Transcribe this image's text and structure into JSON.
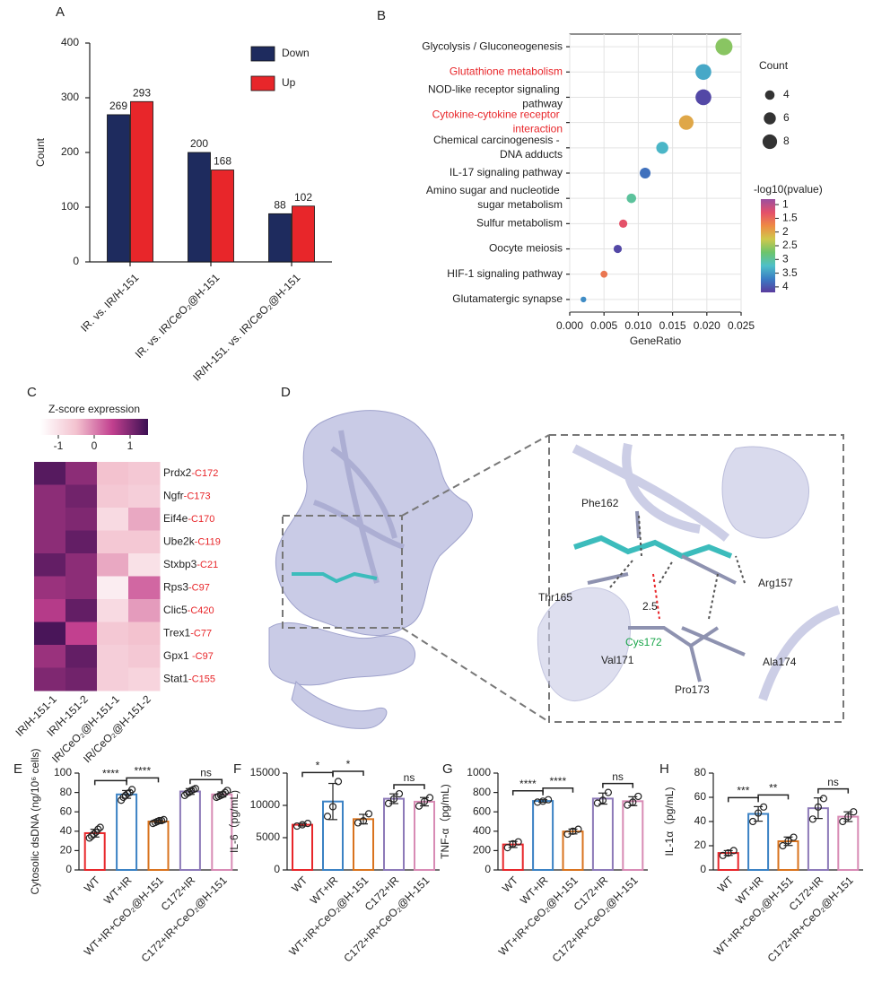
{
  "chart_data": [
    {
      "type": "grouped-bar",
      "panel": "A",
      "ylabel": "Count",
      "categories": [
        "IR. vs. IR/H-151",
        "IR. vs. IR/CeO₂@H-151",
        "IR/H-151. vs. IR/CeO₂@H-151"
      ],
      "series": [
        {
          "name": "Down",
          "color": "#1e2b5e",
          "values": [
            269,
            200,
            88
          ]
        },
        {
          "name": "Up",
          "color": "#e8262a",
          "values": [
            293,
            168,
            102
          ]
        }
      ],
      "ylim": [
        0,
        400
      ],
      "yticks": [
        0,
        100,
        200,
        300,
        400
      ]
    },
    {
      "type": "dot",
      "panel": "B",
      "xlabel": "GeneRatio",
      "categories": [
        "Glycolysis / Gluconeogenesis",
        "Glutathione metabolism",
        "NOD-like receptor signaling pathway",
        "Cytokine-cytokine receptor interaction",
        "Chemical carcinogenesis - DNA adducts",
        "IL-17 signaling pathway",
        "Amino sugar and nucleotide sugar metabolism",
        "Sulfur metabolism",
        "Oocyte meiosis",
        "HIF-1 signaling pathway",
        "Glutamatergic synapse"
      ],
      "label_colors": [
        "#222222",
        "#e8262a",
        "#222222",
        "#e8262a",
        "#222222",
        "#222222",
        "#222222",
        "#222222",
        "#222222",
        "#222222",
        "#222222"
      ],
      "gene_ratio": [
        0.0225,
        0.0195,
        0.0195,
        0.017,
        0.0135,
        0.011,
        0.009,
        0.0078,
        0.007,
        0.005,
        0.002
      ],
      "count": [
        10,
        9,
        9,
        8,
        6,
        5,
        4,
        3,
        3,
        2,
        1
      ],
      "neg_log10_p": [
        2.6,
        3.4,
        4.1,
        2.0,
        3.3,
        3.8,
        3.0,
        1.3,
        4.1,
        1.6,
        3.6
      ],
      "xlim": [
        0,
        0.025
      ],
      "xticks": [
        {
          "value": 0,
          "label": "0.000"
        },
        0.005,
        {
          "value": 0.01,
          "label": "0.010"
        },
        0.015,
        {
          "value": 0.02,
          "label": "0.020"
        },
        0.025
      ],
      "grid": true,
      "size_title": "Count",
      "size_ticks": [
        4,
        6,
        8
      ],
      "color_title": "-log10(pvalue)",
      "clim": [
        0.8,
        4.2
      ],
      "cticks": [
        1,
        1.5,
        2,
        2.5,
        3,
        3.5,
        4
      ],
      "colorscale": [
        "#9b4fa0",
        "#e4506a",
        "#ee8a44",
        "#cfc84c",
        "#6cc46b",
        "#4ec0c8",
        "#3a7cc4",
        "#5a3b9e"
      ]
    },
    {
      "type": "heatmap",
      "panel": "C",
      "color_title": "Z-score expression",
      "rows": [
        "Prdx2",
        "Ngfr",
        "Eif4e",
        "Ube2k",
        "Stxbp3",
        "Rps3",
        "Clic5",
        "Trex1",
        "Gpx1 ",
        "Stat1"
      ],
      "row_sites": [
        "-C172",
        "-C173",
        "-C170",
        "-C119",
        "-C21",
        "-C97",
        "-C420",
        "-C77",
        "-C97",
        "-C155"
      ],
      "columns": [
        "IR/H-151-1",
        "IR/H-151-2",
        "IR/CeO₂@H-151-1",
        "IR/CeO₂@H-151-2"
      ],
      "values": [
        [
          1.3,
          0.9,
          -0.5,
          -0.6
        ],
        [
          0.9,
          1.1,
          -0.6,
          -0.7
        ],
        [
          0.9,
          1.0,
          -0.9,
          -0.3
        ],
        [
          0.9,
          1.2,
          -0.6,
          -0.6
        ],
        [
          1.2,
          0.9,
          -0.3,
          -1.0
        ],
        [
          0.8,
          0.9,
          -1.2,
          0.2
        ],
        [
          0.6,
          1.2,
          -0.9,
          -0.2
        ],
        [
          1.4,
          0.5,
          -0.6,
          -0.5
        ],
        [
          0.8,
          1.2,
          -0.7,
          -0.6
        ],
        [
          1.0,
          1.1,
          -0.7,
          -0.8
        ]
      ],
      "zlim": [
        -1.5,
        1.5
      ],
      "zticks": [
        -1,
        0,
        1
      ],
      "colorscale": [
        "#ffffff",
        "#f3c2cf",
        "#c2408f",
        "#3b1053"
      ]
    },
    {
      "type": "bar-dots",
      "panel": "E",
      "ylabel": "Cytosolic dsDNA (ng/10⁶ cells)",
      "categories": [
        "WT",
        "WT+IR",
        "WT+IR+CeO₂@H-151",
        "C172+IR",
        "C172+IR+CeO₂@H-151"
      ],
      "colors": [
        "#e8262a",
        "#3b82c4",
        "#d9731e",
        "#8d7ab8",
        "#d88bb5"
      ],
      "values": [
        38,
        78,
        50,
        81,
        78
      ],
      "errors": [
        4,
        4,
        1.5,
        3,
        2.6
      ],
      "points": [
        [
          33,
          35,
          37,
          39,
          42,
          44
        ],
        [
          72,
          75,
          77,
          79,
          80,
          83
        ],
        [
          48,
          49,
          50,
          51,
          51,
          52
        ],
        [
          77,
          79,
          80,
          82,
          83,
          84
        ],
        [
          75,
          76,
          77,
          78,
          80,
          82
        ]
      ],
      "significance": [
        {
          "from": 0,
          "to": 1,
          "label": "****"
        },
        {
          "from": 1,
          "to": 2,
          "label": "****"
        },
        {
          "from": 3,
          "to": 4,
          "label": "ns"
        }
      ],
      "ylim": [
        0,
        100
      ],
      "yticks": [
        0,
        20,
        40,
        60,
        80,
        100
      ]
    },
    {
      "type": "bar-dots",
      "panel": "F",
      "ylabel": "IL-6（pg/mL)",
      "categories": [
        "WT",
        "WT+IR",
        "WT+IR+CeO₂@H-151",
        "C172+IR",
        "C172+IR+CeO₂@H-151"
      ],
      "colors": [
        "#e8262a",
        "#3b82c4",
        "#d9731e",
        "#8d7ab8",
        "#d88bb5"
      ],
      "values": [
        7000,
        10600,
        7870,
        11030,
        10570
      ],
      "errors": [
        200,
        2800,
        740,
        750,
        650
      ],
      "points": [
        [
          6800,
          7000,
          7200
        ],
        [
          8300,
          9800,
          13700
        ],
        [
          7300,
          7600,
          8700
        ],
        [
          10300,
          11000,
          11800
        ],
        [
          9900,
          10600,
          11200
        ]
      ],
      "significance": [
        {
          "from": 0,
          "to": 1,
          "label": "*"
        },
        {
          "from": 1,
          "to": 2,
          "label": "*"
        },
        {
          "from": 3,
          "to": 4,
          "label": "ns"
        }
      ],
      "ylim": [
        0,
        15000
      ],
      "yticks": [
        0,
        5000,
        10000,
        15000
      ]
    },
    {
      "type": "bar-dots",
      "panel": "G",
      "ylabel": "TNF-α（pg/mL)",
      "categories": [
        "WT",
        "WT+IR",
        "WT+IR+CeO₂@H-151",
        "C172+IR",
        "C172+IR+CeO₂@H-151"
      ],
      "colors": [
        "#e8262a",
        "#3b82c4",
        "#d9731e",
        "#8d7ab8",
        "#d88bb5"
      ],
      "values": [
        263,
        712,
        397,
        737,
        710
      ],
      "errors": [
        31,
        13,
        25,
        57,
        46
      ],
      "points": [
        [
          230,
          270,
          290
        ],
        [
          700,
          710,
          725
        ],
        [
          370,
          400,
          420
        ],
        [
          690,
          720,
          800
        ],
        [
          670,
          700,
          760
        ]
      ],
      "significance": [
        {
          "from": 0,
          "to": 1,
          "label": "****"
        },
        {
          "from": 1,
          "to": 2,
          "label": "****"
        },
        {
          "from": 3,
          "to": 4,
          "label": "ns"
        }
      ],
      "ylim": [
        0,
        1000
      ],
      "yticks": [
        0,
        200,
        400,
        600,
        800,
        1000
      ]
    },
    {
      "type": "bar-dots",
      "panel": "H",
      "ylabel": "IL-1α（pg/mL)",
      "categories": [
        "WT",
        "WT+IR",
        "WT+IR+CeO₂@H-151",
        "C172+IR",
        "C172+IR+CeO₂@H-151"
      ],
      "colors": [
        "#e8262a",
        "#3b82c4",
        "#d9731e",
        "#8d7ab8",
        "#d88bb5"
      ],
      "values": [
        14,
        46.3,
        23.7,
        51,
        44
      ],
      "errors": [
        2,
        6,
        3.5,
        8.5,
        4
      ],
      "points": [
        [
          12,
          14,
          16
        ],
        [
          40,
          47,
          52
        ],
        [
          20,
          24,
          27
        ],
        [
          42,
          52,
          59
        ],
        [
          40,
          44,
          48
        ]
      ],
      "significance": [
        {
          "from": 0,
          "to": 1,
          "label": "***"
        },
        {
          "from": 1,
          "to": 2,
          "label": "**"
        },
        {
          "from": 3,
          "to": 4,
          "label": "ns"
        }
      ],
      "ylim": [
        0,
        80
      ],
      "yticks": [
        0,
        20,
        40,
        60,
        80
      ]
    }
  ],
  "structure": {
    "panel": "D",
    "residues": [
      "Phe162",
      "Thr165",
      "Arg157",
      "Val171",
      "Pro173",
      "Ala174"
    ],
    "key_residue": "Cys172",
    "distance": 2.5
  }
}
